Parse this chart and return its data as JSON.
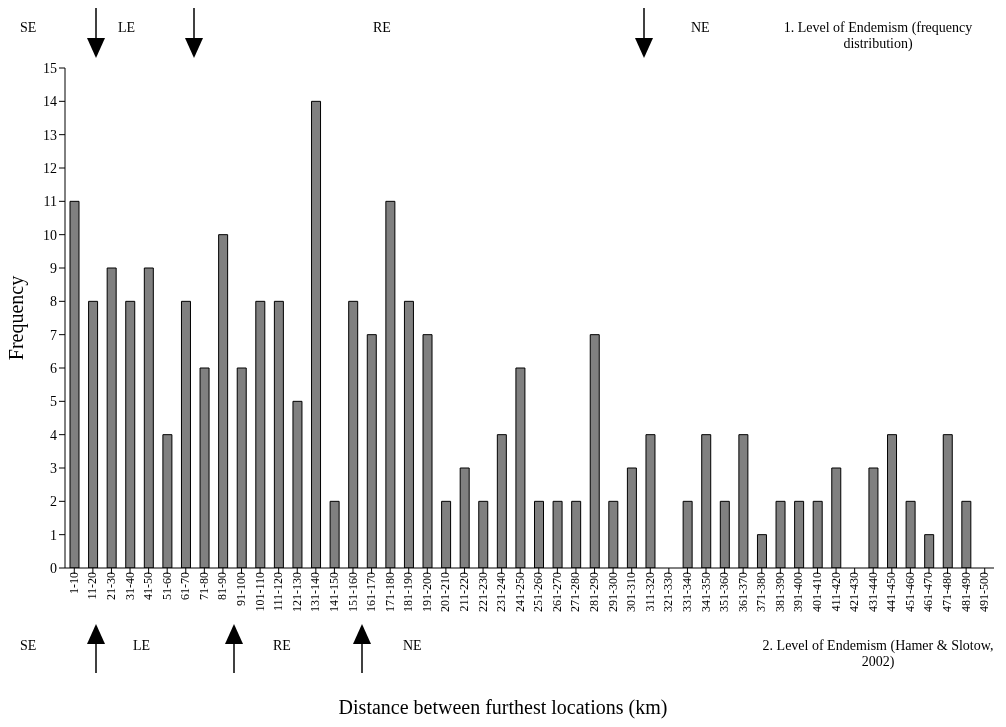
{
  "chart_data": {
    "type": "bar",
    "xlabel": "Distance between furthest locations (km)",
    "ylabel": "Frequency",
    "categories": [
      "1-10",
      "11-20",
      "21-30",
      "31-40",
      "41-50",
      "51-60",
      "61-70",
      "71-80",
      "81-90",
      "91-100",
      "101-110",
      "111-120",
      "121-130",
      "131-140",
      "141-150",
      "151-160",
      "161-170",
      "171-180",
      "181-190",
      "191-200",
      "201-210",
      "211-220",
      "221-230",
      "231-240",
      "241-250",
      "251-260",
      "261-270",
      "271-280",
      "281-290",
      "291-300",
      "301-310",
      "311-320",
      "321-330",
      "331-340",
      "341-350",
      "351-360",
      "361-370",
      "371-380",
      "381-390",
      "391-400",
      "401-410",
      "411-420",
      "421-430",
      "431-440",
      "441-450",
      "451-460",
      "461-470",
      "471-480",
      "481-490",
      "491-500"
    ],
    "values": [
      11,
      8,
      9,
      8,
      9,
      4,
      8,
      6,
      10,
      6,
      8,
      8,
      5,
      14,
      2,
      8,
      7,
      11,
      8,
      7,
      2,
      3,
      2,
      4,
      6,
      2,
      2,
      2,
      7,
      2,
      3,
      4,
      0,
      2,
      4,
      2,
      4,
      1,
      2,
      2,
      2,
      3,
      0,
      3,
      4,
      2,
      1,
      4,
      2,
      0
    ],
    "color": "#808080",
    "ylim": [
      0,
      15
    ],
    "yticks": [
      0,
      1,
      2,
      3,
      4,
      5,
      6,
      7,
      8,
      9,
      10,
      11,
      12,
      13,
      14,
      15
    ],
    "grid": false,
    "legend": false,
    "annotations": [
      "SE",
      "LE",
      "RE",
      "NE",
      "1. Level of Endemism (frequency distribution)",
      "SE",
      "LE",
      "RE",
      "NE",
      "2. Level of Endemism (Hamer & Slotow, 2002)"
    ]
  }
}
